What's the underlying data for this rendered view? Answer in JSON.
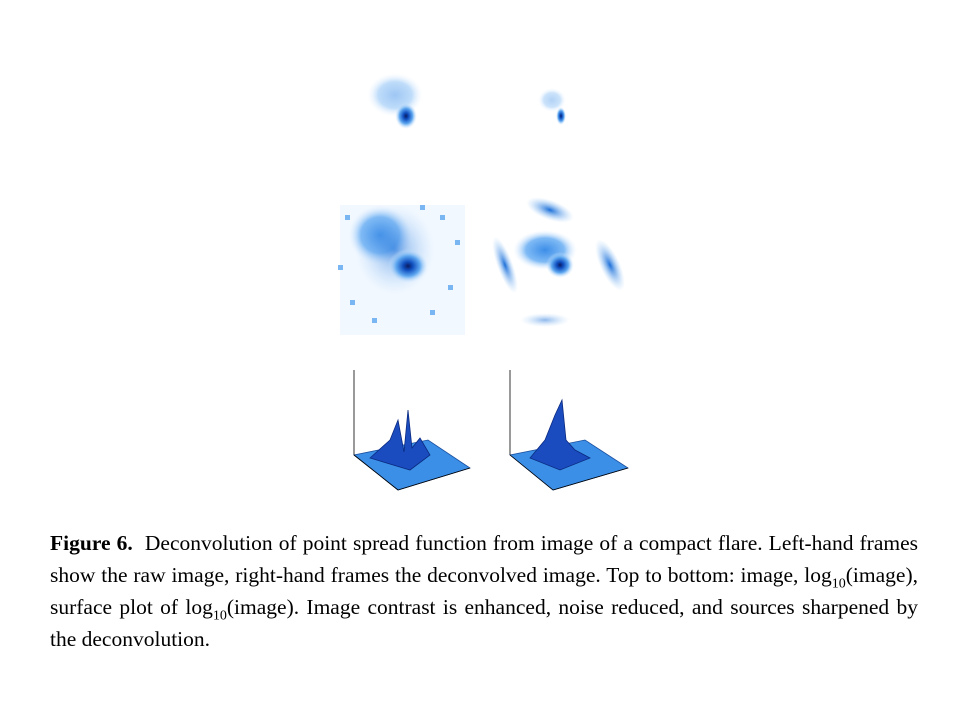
{
  "caption": {
    "label": "Figure 6.",
    "parts": [
      "Deconvolution of point spread function from image of a compact flare.  Left-hand frames show the raw image, right-hand frames the deconvolved image.  Top to bottom:  image, log",
      "10",
      "(image), surface plot of log",
      "10",
      "(image).  Image contrast is enhanced, noise reduced, and sources sharpened by the deconvolution."
    ]
  }
}
